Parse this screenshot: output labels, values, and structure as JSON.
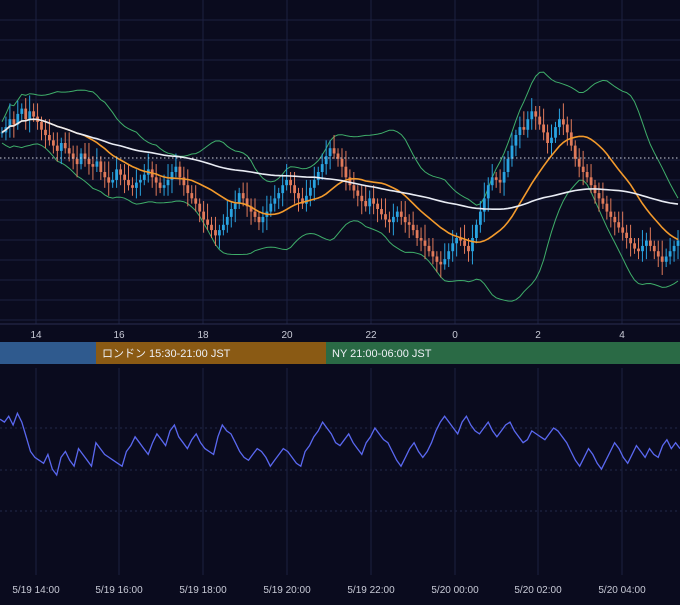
{
  "colors": {
    "background": "#0a0b1e",
    "grid": "#1c2040",
    "candle_up": "#29a3e0",
    "candle_down": "#e07a5a",
    "ma_fast": "#f39a2c",
    "ma_slow": "#e9ecf4",
    "bollinger": "#3fae6a",
    "oscillator": "#5a68f0",
    "session_tokyo": "#2f5a8e",
    "session_london": "#8a5a14",
    "session_ny": "#2a6a45",
    "axis_text": "#c8cad6"
  },
  "sessions": [
    {
      "label": "",
      "color": "#2f5a8e"
    },
    {
      "label": "ロンドン 15:30-21:00 JST",
      "color": "#8a5a14"
    },
    {
      "label": "NY 21:00-06:00 JST",
      "color": "#2a6a45"
    }
  ],
  "chart_data": [
    {
      "type": "candlestick",
      "title": "",
      "x_tick_labels": [
        "14",
        "16",
        "18",
        "20",
        "22",
        "0",
        "2",
        "4"
      ],
      "horizontal_reference_line": "dotted",
      "grid": true,
      "y_relative": [
        0,
        100
      ],
      "candles_close_relative": [
        65,
        67,
        70,
        68,
        72,
        74,
        70,
        73,
        71,
        69,
        66,
        64,
        62,
        60,
        58,
        61,
        59,
        57,
        55,
        53,
        57,
        55,
        53,
        52,
        54,
        50,
        48,
        46,
        47,
        51,
        49,
        47,
        45,
        44,
        46,
        47,
        49,
        51,
        48,
        46,
        44,
        45,
        47,
        50,
        52,
        48,
        45,
        42,
        40,
        38,
        35,
        32,
        30,
        28,
        26,
        28,
        30,
        33,
        36,
        38,
        42,
        40,
        37,
        35,
        33,
        31,
        33,
        35,
        38,
        40,
        42,
        45,
        47,
        45,
        42,
        40,
        38,
        41,
        44,
        47,
        50,
        53,
        56,
        59,
        57,
        55,
        52,
        48,
        45,
        43,
        41,
        39,
        37,
        40,
        38,
        36,
        34,
        32,
        31,
        33,
        35,
        33,
        31,
        30,
        28,
        25,
        24,
        22,
        20,
        18,
        16,
        15,
        17,
        20,
        23,
        25,
        24,
        22,
        20,
        25,
        30,
        35,
        40,
        45,
        48,
        47,
        46,
        50,
        55,
        60,
        64,
        67,
        66,
        70,
        73,
        71,
        68,
        65,
        61,
        63,
        67,
        70,
        68,
        65,
        60,
        55,
        52,
        50,
        48,
        45,
        42,
        40,
        38,
        35,
        33,
        31,
        29,
        27,
        25,
        23,
        21,
        20,
        22,
        24,
        22,
        20,
        18,
        16,
        18,
        20,
        22,
        24
      ]
    },
    {
      "type": "line",
      "x_tick_labels": [
        "5/19 14:00",
        "5/19 16:00",
        "5/19 18:00",
        "5/19 20:00",
        "5/19 22:00",
        "5/20 00:00",
        "5/20 02:00",
        "5/20 04:00"
      ],
      "grid": true,
      "y_relative": [
        0,
        100
      ],
      "series": [
        {
          "values": [
            72,
            70,
            74,
            68,
            76,
            70,
            60,
            50,
            46,
            44,
            42,
            48,
            38,
            34,
            46,
            50,
            44,
            40,
            52,
            48,
            44,
            40,
            56,
            52,
            48,
            46,
            44,
            42,
            40,
            50,
            54,
            60,
            56,
            52,
            48,
            56,
            62,
            58,
            54,
            64,
            68,
            60,
            56,
            52,
            58,
            62,
            56,
            52,
            50,
            48,
            60,
            68,
            64,
            62,
            56,
            50,
            46,
            44,
            48,
            52,
            50,
            46,
            40,
            44,
            48,
            52,
            50,
            46,
            42,
            40,
            50,
            54,
            60,
            64,
            70,
            66,
            62,
            56,
            54,
            58,
            62,
            56,
            52,
            48,
            56,
            60,
            66,
            62,
            58,
            56,
            50,
            44,
            40,
            46,
            52,
            56,
            50,
            46,
            50,
            56,
            64,
            70,
            74,
            70,
            66,
            62,
            70,
            74,
            68,
            64,
            62,
            66,
            70,
            64,
            60,
            64,
            68,
            70,
            64,
            60,
            56,
            58,
            64,
            62,
            60,
            58,
            62,
            66,
            64,
            60,
            56,
            50,
            44,
            40,
            46,
            52,
            48,
            42,
            38,
            44,
            50,
            56,
            52,
            46,
            42,
            48,
            54,
            50,
            46,
            52,
            48,
            46,
            54,
            58,
            52,
            56,
            52
          ]
        }
      ]
    }
  ]
}
